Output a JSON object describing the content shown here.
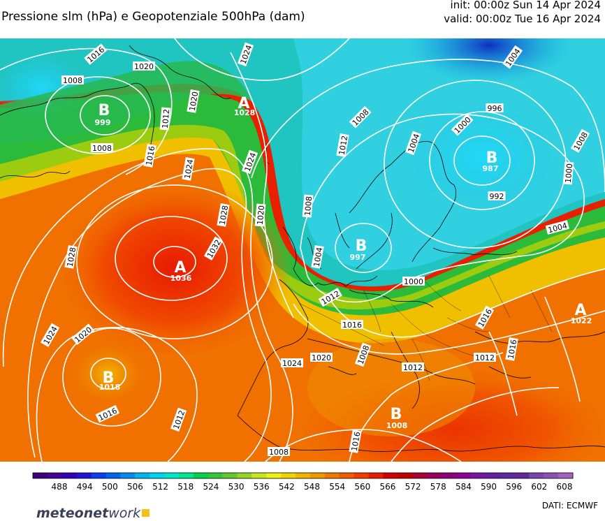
{
  "title": "Pressione slm (hPa) e Geopotenziale 500hPa (dam)",
  "init": "init: 00:00z Sun 14 Apr 2024",
  "valid": "valid: 00:00z Tue 16 Apr 2024",
  "centers": [
    {
      "letter": "B",
      "value": "999"
    },
    {
      "letter": "A",
      "value": "1028"
    },
    {
      "letter": "B",
      "value": "987"
    },
    {
      "letter": "A",
      "value": "1036"
    },
    {
      "letter": "B",
      "value": "997"
    },
    {
      "letter": "B",
      "value": "1018"
    },
    {
      "letter": "B",
      "value": "1008"
    },
    {
      "letter": "A",
      "value": "1022"
    }
  ],
  "isobars": [
    "1016",
    "1020",
    "1008",
    "1008",
    "1024",
    "1020",
    "1012",
    "1016",
    "1024",
    "1008",
    "1012",
    "1004",
    "1000",
    "996",
    "1004",
    "1008",
    "1000",
    "992",
    "1024",
    "1028",
    "1032",
    "1020",
    "1028",
    "1008",
    "1004",
    "1000",
    "1012",
    "1016",
    "1004",
    "1024",
    "1020",
    "1008",
    "1016",
    "1012",
    "1024",
    "1020",
    "1012",
    "1016",
    "1012",
    "1016",
    "1008",
    "1016"
  ],
  "colorbar": {
    "ticks": [
      "488",
      "494",
      "500",
      "506",
      "512",
      "518",
      "524",
      "530",
      "536",
      "542",
      "548",
      "554",
      "560",
      "566",
      "572",
      "578",
      "584",
      "590",
      "596",
      "602",
      "608"
    ]
  },
  "credit": "DATI:  ECMWF",
  "logo": {
    "bold": "meteonet",
    "thin": "work"
  },
  "colors": {
    "cold": "#00c8f0",
    "mid": "#20b450",
    "warm": "#f08c00",
    "hot": "#e60000"
  }
}
